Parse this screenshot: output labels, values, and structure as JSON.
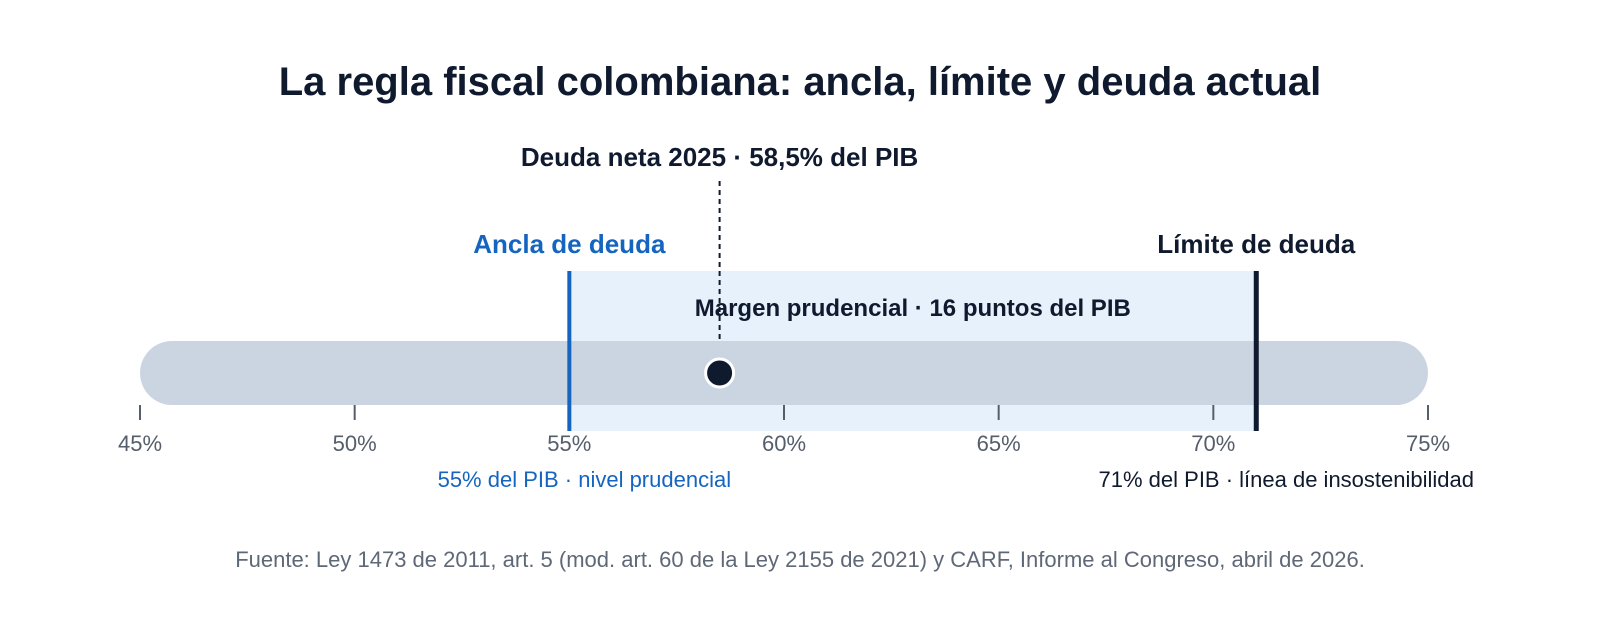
{
  "chart_data": {
    "type": "bar",
    "title": "La regla fiscal colombiana: ancla, límite y deuda actual",
    "xlim": [
      45,
      75
    ],
    "x_ticks": [
      45,
      50,
      55,
      60,
      65,
      70,
      75
    ],
    "x_tick_labels": [
      "45%",
      "50%",
      "55%",
      "60%",
      "65%",
      "70%",
      "75%"
    ],
    "series": [
      {
        "name": "Deuda neta 2025",
        "value": 58.5,
        "label": "Deuda neta 2025 · 58,5% del PIB"
      }
    ],
    "anchor": {
      "value": 55,
      "label": "Ancla de deuda",
      "note": "55% del PIB · nivel prudencial"
    },
    "limit": {
      "value": 71,
      "label": "Límite de deuda",
      "note": "71% del PIB · línea de insostenibilidad"
    },
    "band": {
      "from": 55,
      "to": 71,
      "label": "Margen prudencial · 16 puntos del PIB"
    },
    "source": "Fuente: Ley 1473 de 2011, art. 5 (mod. art. 60 de la Ley 2155 de 2021) y CARF, Informe al Congreso, abril de 2026.",
    "colors": {
      "title": "#0f1a2e",
      "track": "#cbd5e1",
      "band": "#e6f1fb",
      "anchor": "#1565c0",
      "limit": "#0f1a2e",
      "marker": "#0f1a2e",
      "tick": "#555e6b",
      "source": "#5f6877"
    }
  }
}
